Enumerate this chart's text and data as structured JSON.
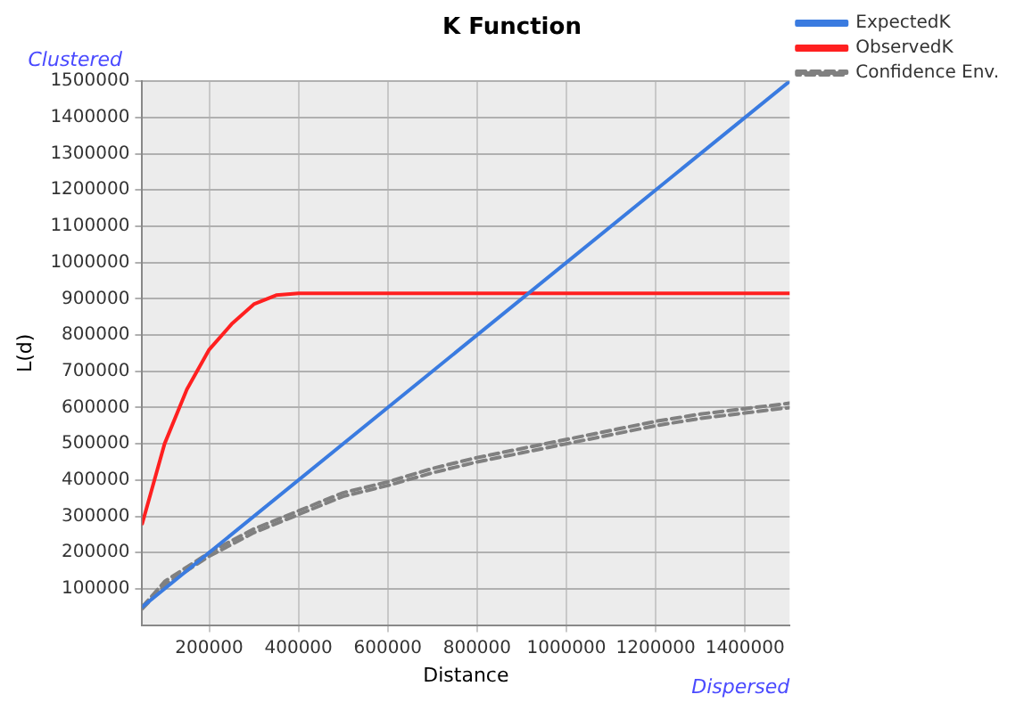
{
  "chart_data": {
    "type": "line",
    "title": "K Function",
    "xlabel": "Distance",
    "ylabel": "L(d)",
    "annotations": [
      "Clustered",
      "Dispersed"
    ],
    "xlim": [
      50000,
      1500000
    ],
    "xticks": [
      200000,
      400000,
      600000,
      800000,
      1000000,
      1200000,
      1400000
    ],
    "ylim": [
      0,
      1500000
    ],
    "yticks": [
      100000,
      200000,
      300000,
      400000,
      500000,
      600000,
      700000,
      800000,
      900000,
      1000000,
      1100000,
      1200000,
      1300000,
      1400000,
      1500000
    ],
    "grid": true,
    "legend": "top right",
    "series": [
      {
        "name": "ExpectedK",
        "color": "#3a7be0",
        "x": [
          50000,
          1500000
        ],
        "values": [
          50000,
          1500000
        ]
      },
      {
        "name": "ObservedK",
        "color": "#ff2020",
        "x": [
          50000,
          100000,
          150000,
          200000,
          250000,
          300000,
          350000,
          400000,
          500000,
          600000,
          700000,
          800000,
          900000,
          1000000,
          1100000,
          1200000,
          1300000,
          1400000,
          1500000
        ],
        "values": [
          280000,
          500000,
          650000,
          760000,
          830000,
          885000,
          910000,
          915000,
          915000,
          915000,
          915000,
          915000,
          915000,
          915000,
          915000,
          915000,
          915000,
          915000,
          915000
        ]
      },
      {
        "name": "Confidence Env.",
        "color": "#808080",
        "line_style": "dashed",
        "x": [
          50000,
          100000,
          200000,
          300000,
          400000,
          500000,
          600000,
          700000,
          800000,
          900000,
          1000000,
          1100000,
          1200000,
          1300000,
          1400000,
          1500000
        ],
        "values": [
          45000,
          110000,
          190000,
          255000,
          305000,
          355000,
          385000,
          420000,
          450000,
          475000,
          500000,
          525000,
          550000,
          570000,
          585000,
          600000
        ]
      },
      {
        "color": "#808080",
        "line_style": "dashed",
        "x": [
          50000,
          100000,
          200000,
          300000,
          400000,
          500000,
          600000,
          700000,
          800000,
          900000,
          1000000,
          1100000,
          1200000,
          1300000,
          1400000,
          1500000
        ],
        "values": [
          50000,
          120000,
          200000,
          265000,
          315000,
          365000,
          395000,
          432000,
          462000,
          487000,
          512000,
          537000,
          562000,
          582000,
          597000,
          612000
        ]
      }
    ]
  }
}
